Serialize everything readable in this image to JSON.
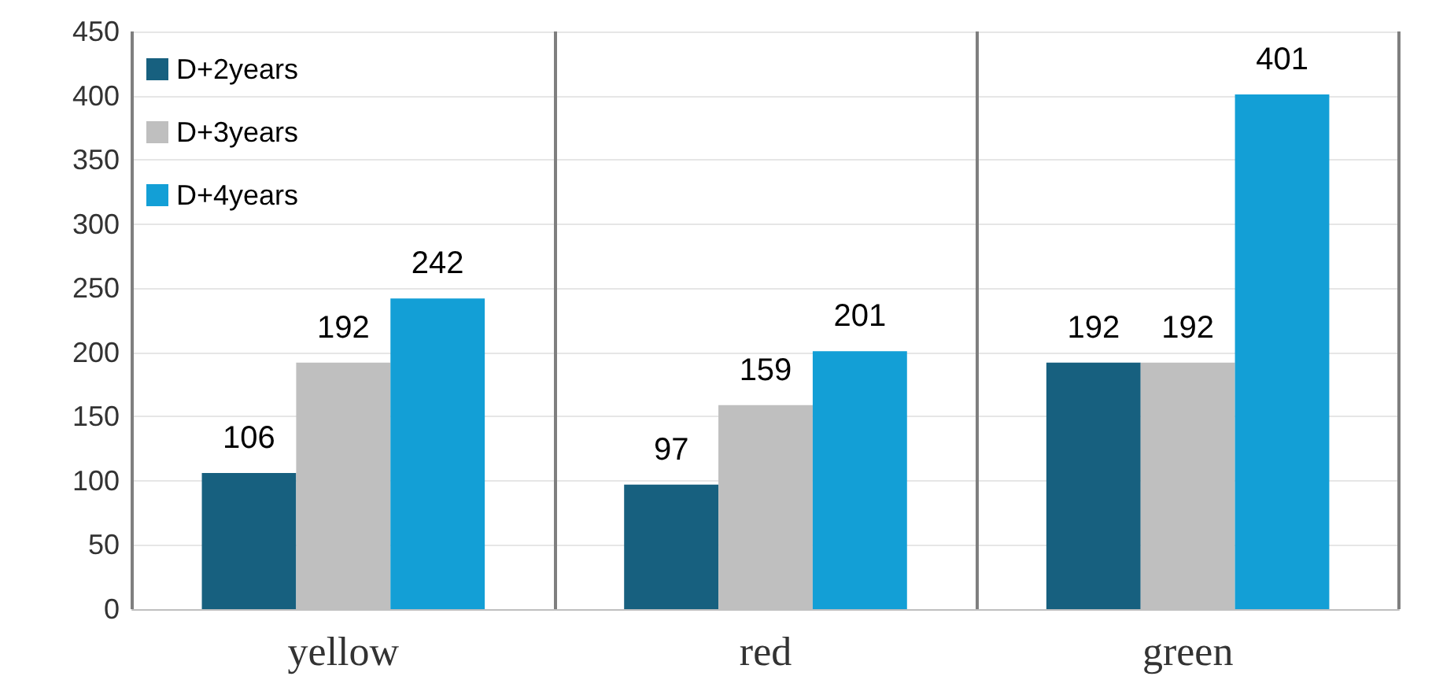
{
  "chart_data": {
    "type": "bar",
    "categories": [
      "yellow",
      "red",
      "green"
    ],
    "series": [
      {
        "name": "D+2years",
        "color": "#17607f",
        "values": [
          106,
          97,
          192
        ]
      },
      {
        "name": "D+3years",
        "color": "#bfbfbf",
        "values": [
          192,
          159,
          192
        ]
      },
      {
        "name": "D+4years",
        "color": "#139fd6",
        "values": [
          242,
          201,
          401
        ]
      }
    ],
    "ylim": [
      0,
      450
    ],
    "yticks": [
      0,
      50,
      100,
      150,
      200,
      250,
      300,
      350,
      400,
      450
    ],
    "grid": true,
    "legend": "top left",
    "data_labels": true
  }
}
